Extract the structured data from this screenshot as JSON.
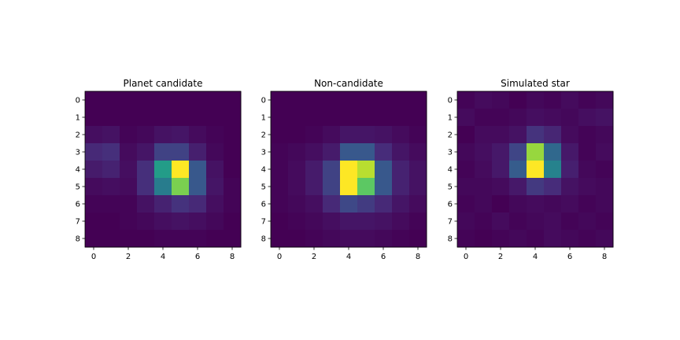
{
  "chart_data": [
    {
      "type": "heatmap",
      "title": "Planet candidate",
      "x_ticks": [
        "0",
        "2",
        "4",
        "6",
        "8"
      ],
      "y_ticks": [
        "0",
        "1",
        "2",
        "3",
        "4",
        "5",
        "6",
        "7",
        "8"
      ],
      "xlim": [
        -0.5,
        8.5
      ],
      "ylim": [
        8.5,
        -0.5
      ],
      "colormap": "viridis",
      "grid": false,
      "values": [
        [
          0.0,
          0.0,
          0.0,
          0.0,
          0.0,
          0.0,
          0.0,
          0.0,
          0.0
        ],
        [
          0.0,
          0.0,
          0.0,
          0.0,
          0.0,
          0.0,
          0.0,
          0.0,
          0.0
        ],
        [
          0.04,
          0.05,
          0.01,
          0.02,
          0.05,
          0.06,
          0.03,
          0.01,
          0.0
        ],
        [
          0.12,
          0.14,
          0.03,
          0.06,
          0.2,
          0.2,
          0.09,
          0.02,
          0.0
        ],
        [
          0.08,
          0.1,
          0.04,
          0.14,
          0.55,
          1.0,
          0.28,
          0.05,
          0.0
        ],
        [
          0.03,
          0.04,
          0.03,
          0.14,
          0.42,
          0.8,
          0.28,
          0.06,
          0.01
        ],
        [
          0.01,
          0.01,
          0.01,
          0.05,
          0.1,
          0.15,
          0.12,
          0.04,
          0.01
        ],
        [
          0.0,
          0.0,
          0.01,
          0.02,
          0.04,
          0.05,
          0.04,
          0.02,
          0.0
        ],
        [
          0.0,
          0.0,
          0.0,
          0.0,
          0.01,
          0.01,
          0.01,
          0.0,
          0.0
        ]
      ]
    },
    {
      "type": "heatmap",
      "title": "Non-candidate",
      "x_ticks": [
        "0",
        "2",
        "4",
        "6",
        "8"
      ],
      "y_ticks": [
        "0",
        "1",
        "2",
        "3",
        "4",
        "5",
        "6",
        "7",
        "8"
      ],
      "xlim": [
        -0.5,
        8.5
      ],
      "ylim": [
        8.5,
        -0.5
      ],
      "colormap": "viridis",
      "grid": false,
      "values": [
        [
          0.0,
          0.0,
          0.0,
          0.0,
          0.0,
          0.0,
          0.0,
          0.0,
          0.0
        ],
        [
          0.0,
          0.0,
          0.0,
          0.0,
          0.0,
          0.0,
          0.0,
          0.0,
          0.0
        ],
        [
          0.0,
          0.0,
          0.01,
          0.03,
          0.06,
          0.06,
          0.05,
          0.03,
          0.01
        ],
        [
          0.01,
          0.02,
          0.04,
          0.08,
          0.28,
          0.28,
          0.13,
          0.06,
          0.03
        ],
        [
          0.01,
          0.03,
          0.08,
          0.2,
          1.0,
          0.9,
          0.28,
          0.1,
          0.05
        ],
        [
          0.01,
          0.03,
          0.08,
          0.2,
          1.0,
          0.75,
          0.28,
          0.1,
          0.05
        ],
        [
          0.01,
          0.02,
          0.04,
          0.12,
          0.22,
          0.18,
          0.12,
          0.06,
          0.03
        ],
        [
          0.0,
          0.01,
          0.02,
          0.04,
          0.06,
          0.06,
          0.05,
          0.03,
          0.01
        ],
        [
          0.0,
          0.0,
          0.01,
          0.02,
          0.03,
          0.03,
          0.02,
          0.01,
          0.0
        ]
      ]
    },
    {
      "type": "heatmap",
      "title": "Simulated star",
      "x_ticks": [
        "0",
        "2",
        "4",
        "6",
        "8"
      ],
      "y_ticks": [
        "0",
        "1",
        "2",
        "3",
        "4",
        "5",
        "6",
        "7",
        "8"
      ],
      "xlim": [
        -0.5,
        8.5
      ],
      "ylim": [
        8.5,
        -0.5
      ],
      "colormap": "viridis",
      "grid": false,
      "values": [
        [
          0.02,
          0.04,
          0.03,
          0.01,
          0.03,
          0.02,
          0.04,
          0.02,
          0.03
        ],
        [
          0.04,
          0.02,
          0.02,
          0.03,
          0.05,
          0.04,
          0.03,
          0.05,
          0.06
        ],
        [
          0.01,
          0.04,
          0.04,
          0.06,
          0.16,
          0.12,
          0.04,
          0.02,
          0.03
        ],
        [
          0.03,
          0.05,
          0.08,
          0.22,
          0.85,
          0.35,
          0.08,
          0.02,
          0.04
        ],
        [
          0.02,
          0.04,
          0.08,
          0.3,
          1.0,
          0.45,
          0.1,
          0.03,
          0.02
        ],
        [
          0.03,
          0.03,
          0.04,
          0.08,
          0.18,
          0.14,
          0.06,
          0.04,
          0.03
        ],
        [
          0.02,
          0.03,
          0.01,
          0.03,
          0.04,
          0.03,
          0.04,
          0.02,
          0.03
        ],
        [
          0.03,
          0.02,
          0.04,
          0.02,
          0.03,
          0.04,
          0.02,
          0.03,
          0.02
        ],
        [
          0.02,
          0.01,
          0.02,
          0.03,
          0.02,
          0.04,
          0.03,
          0.02,
          0.03
        ]
      ]
    }
  ]
}
